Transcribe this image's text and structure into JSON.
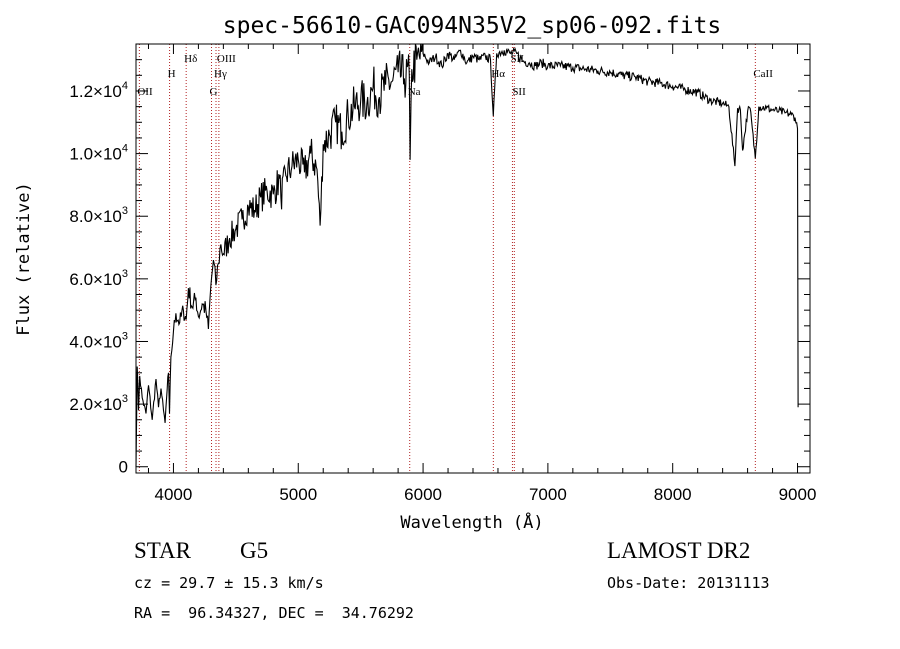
{
  "chart_data": {
    "type": "line",
    "title": "spec-56610-GAC094N35V2_sp06-092.fits",
    "xlabel": "Wavelength (Å)",
    "ylabel": "Flux (relative)",
    "xlim": [
      3700,
      9100
    ],
    "ylim": [
      -200,
      13500
    ],
    "x_ticks": [
      {
        "value": 4000,
        "label": "4000"
      },
      {
        "value": 5000,
        "label": "5000"
      },
      {
        "value": 6000,
        "label": "6000"
      },
      {
        "value": 7000,
        "label": "7000"
      },
      {
        "value": 8000,
        "label": "8000"
      },
      {
        "value": 9000,
        "label": "9000"
      }
    ],
    "y_ticks": [
      {
        "value": 0,
        "mantissa": "0",
        "exponent": ""
      },
      {
        "value": 2000,
        "mantissa": "2.0×10",
        "exponent": "3"
      },
      {
        "value": 4000,
        "mantissa": "4.0×10",
        "exponent": "3"
      },
      {
        "value": 6000,
        "mantissa": "6.0×10",
        "exponent": "3"
      },
      {
        "value": 8000,
        "mantissa": "8.0×10",
        "exponent": "3"
      },
      {
        "value": 10000,
        "mantissa": "1.0×10",
        "exponent": "4"
      },
      {
        "value": 12000,
        "mantissa": "1.2×10",
        "exponent": "4"
      }
    ],
    "spectrum": {
      "x": [
        3700,
        3710,
        3720,
        3730,
        3750,
        3780,
        3800,
        3830,
        3860,
        3880,
        3900,
        3920,
        3933,
        3945,
        3960,
        3968,
        3980,
        4000,
        4020,
        4050,
        4080,
        4102,
        4120,
        4150,
        4180,
        4200,
        4230,
        4260,
        4280,
        4300,
        4320,
        4340,
        4360,
        4380,
        4400,
        4450,
        4500,
        4550,
        4600,
        4650,
        4700,
        4750,
        4800,
        4850,
        4861,
        4900,
        4950,
        5000,
        5050,
        5100,
        5150,
        5175,
        5200,
        5250,
        5300,
        5350,
        5400,
        5450,
        5500,
        5550,
        5600,
        5650,
        5700,
        5750,
        5800,
        5850,
        5890,
        5896,
        5910,
        5950,
        6000,
        6050,
        6100,
        6150,
        6200,
        6250,
        6300,
        6350,
        6400,
        6450,
        6500,
        6540,
        6563,
        6590,
        6650,
        6700,
        6750,
        6800,
        6850,
        6900,
        6950,
        7000,
        7100,
        7200,
        7300,
        7400,
        7500,
        7600,
        7700,
        7800,
        7900,
        8000,
        8100,
        8200,
        8300,
        8400,
        8450,
        8498,
        8520,
        8542,
        8560,
        8600,
        8620,
        8662,
        8690,
        8750,
        8800,
        8850,
        8900,
        8950,
        8980,
        9000,
        9005
      ],
      "y": [
        0,
        3200,
        1800,
        2900,
        2200,
        1700,
        2600,
        1500,
        2800,
        1900,
        2500,
        1800,
        1400,
        2200,
        3000,
        1700,
        3500,
        4300,
        4900,
        4600,
        5000,
        4700,
        5700,
        5100,
        5400,
        4800,
        5200,
        5000,
        4400,
        5800,
        6600,
        5800,
        6500,
        7100,
        6800,
        7300,
        7600,
        7900,
        8300,
        8200,
        8600,
        8800,
        8700,
        9200,
        8600,
        9300,
        9600,
        9800,
        9400,
        10000,
        9500,
        7700,
        10300,
        10600,
        11000,
        10700,
        11200,
        11500,
        11700,
        11600,
        12100,
        11800,
        12200,
        12300,
        12600,
        12400,
        12500,
        9800,
        12700,
        13000,
        13200,
        12900,
        13100,
        12800,
        13200,
        13000,
        13300,
        12900,
        13100,
        13000,
        13100,
        13000,
        11200,
        13200,
        13300,
        13200,
        13200,
        12950,
        12900,
        12800,
        12900,
        12800,
        12800,
        12750,
        12700,
        12650,
        12600,
        12500,
        12450,
        12300,
        12250,
        12150,
        12050,
        11950,
        11700,
        11600,
        11500,
        9600,
        11450,
        11400,
        10100,
        11350,
        11450,
        9850,
        11500,
        11450,
        11400,
        11350,
        11300,
        11250,
        11150,
        10800,
        1900
      ]
    },
    "spectral_lines": [
      {
        "label": "OII",
        "x": 3727,
        "row": 3
      },
      {
        "label": "H",
        "x": 3969,
        "row": 1
      },
      {
        "label": "Hδ",
        "x": 4102,
        "row": 0
      },
      {
        "label": "G",
        "x": 4305,
        "row": 3
      },
      {
        "label": "Hγ",
        "x": 4341,
        "row": 2
      },
      {
        "label": "OIII",
        "x": 4364,
        "row": 0
      },
      {
        "label": "Na",
        "x": 5893,
        "row": 3
      },
      {
        "label": "Hα",
        "x": 6563,
        "row": 1
      },
      {
        "label": "SII",
        "x": 6716,
        "row": 0
      },
      {
        "label": "SII",
        "x": 6731,
        "row": 3
      },
      {
        "label": "CaII",
        "x": 8662,
        "row": 1
      }
    ]
  },
  "info": {
    "object_class": "STAR",
    "subclass": "G5",
    "survey": "LAMOST DR2",
    "redshift": "cz = 29.7 ± 15.3 km/s",
    "obs_date": "Obs-Date: 20131113",
    "coords": "RA =  96.34327, DEC =  34.76292"
  },
  "colors": {
    "spectrum": "#000000",
    "line_marker": "#b22222",
    "axes": "#000000"
  }
}
